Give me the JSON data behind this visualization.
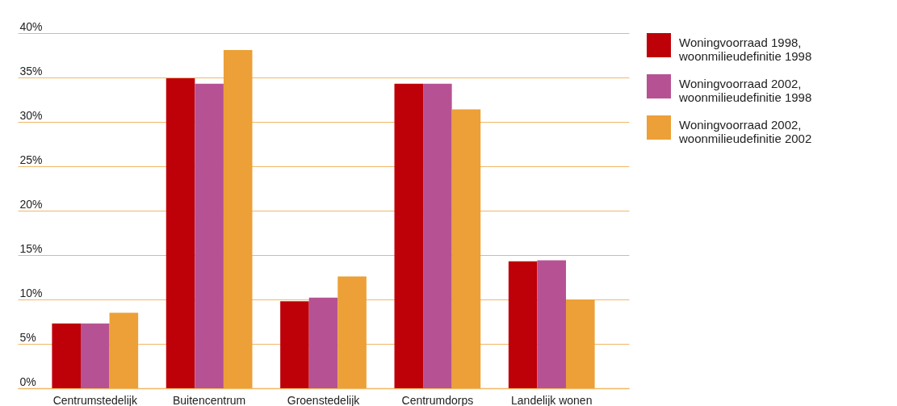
{
  "chart_data": {
    "type": "bar",
    "categories": [
      "Centrumstedelijk",
      "Buitencentrum",
      "Groenstedelijk",
      "Centrumdorps",
      "Landelijk wonen"
    ],
    "series": [
      {
        "name": "Woningvoorraad 1998, woonmilieudefinitie 1998",
        "color": "#be0008",
        "values": [
          7.3,
          34.9,
          9.8,
          34.3,
          14.3
        ]
      },
      {
        "name": "Woningvoorraad 2002, woonmilieudefinitie 1998",
        "color": "#b65293",
        "values": [
          7.3,
          34.3,
          10.2,
          34.3,
          14.4
        ]
      },
      {
        "name": "Woningvoorraad 2002, woonmilieudefinitie 2002",
        "color": "#eca037",
        "values": [
          8.5,
          38.1,
          12.6,
          31.4,
          10.0
        ]
      }
    ],
    "ylim": [
      0,
      40
    ],
    "yticks": [
      {
        "value": 0,
        "label": "0%"
      },
      {
        "value": 5,
        "label": "5%"
      },
      {
        "value": 10,
        "label": "10%"
      },
      {
        "value": 15,
        "label": "15%"
      },
      {
        "value": 20,
        "label": "20%"
      },
      {
        "value": 25,
        "label": "25%"
      },
      {
        "value": 30,
        "label": "30%"
      },
      {
        "value": 35,
        "label": "35%"
      },
      {
        "value": 40,
        "label": "40%"
      }
    ],
    "grid": "y",
    "legend": "top right"
  }
}
